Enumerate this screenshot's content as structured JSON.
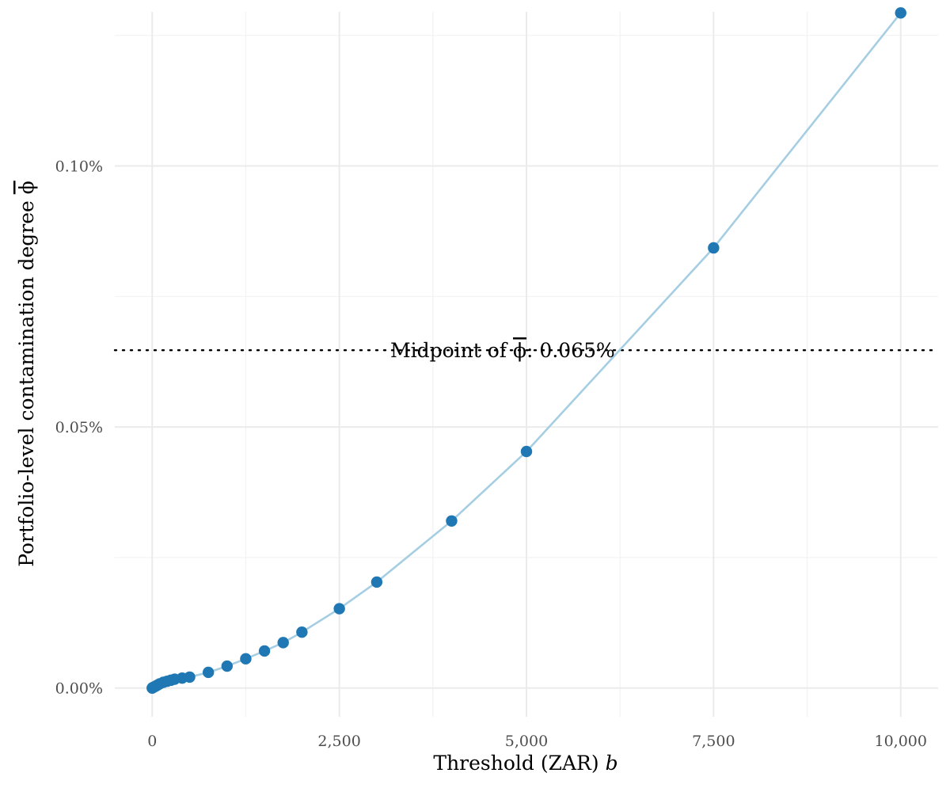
{
  "chart_data": {
    "type": "line",
    "title": "",
    "xlabel": "Threshold (ZAR) ",
    "xlabel_var": "b",
    "ylabel": "Portfolio-level contamination degree ",
    "ylabel_symbol": "ϕ",
    "xlim": [
      -500,
      10500
    ],
    "ylim": [
      -0.0055,
      0.1295
    ],
    "x_ticks": [
      0,
      2500,
      5000,
      7500,
      10000
    ],
    "x_tick_labels": [
      "0",
      "2,500",
      "5,000",
      "7,500",
      "10,000"
    ],
    "y_ticks": [
      0.0,
      0.05,
      0.1
    ],
    "y_tick_labels": [
      "0.00%",
      "0.05%",
      "0.10%"
    ],
    "y_unit": "%",
    "grid": true,
    "legend": "none",
    "series": [
      {
        "line_color": "#a6cee3",
        "point_color": "#1f78b4",
        "x": [
          0,
          10,
          25,
          50,
          75,
          100,
          150,
          200,
          250,
          300,
          400,
          500,
          750,
          1000,
          1250,
          1500,
          1750,
          2000,
          2500,
          3000,
          4000,
          5000,
          7500,
          10000
        ],
        "y": [
          0.0,
          0.0001,
          0.0002,
          0.0004,
          0.0006,
          0.0008,
          0.0011,
          0.0013,
          0.0015,
          0.0017,
          0.0019,
          0.0021,
          0.003,
          0.0042,
          0.0056,
          0.0071,
          0.0087,
          0.0107,
          0.0152,
          0.0203,
          0.032,
          0.0453,
          0.0843,
          0.1293
        ]
      }
    ],
    "reference_line": {
      "y": 0.0647,
      "style": "dotted",
      "color": "#000000",
      "label_prefix": "Midpoint of ",
      "label_symbol": "ϕ",
      "label_suffix": ": 0.065%"
    }
  }
}
